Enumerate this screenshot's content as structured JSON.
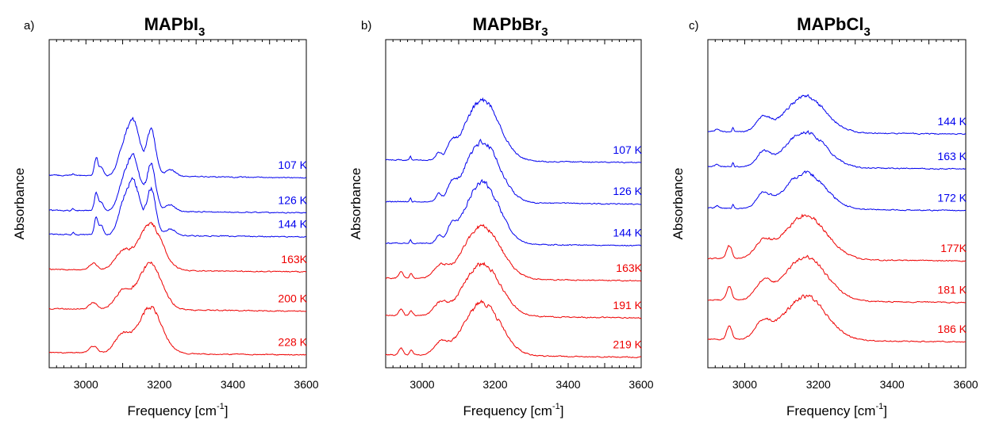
{
  "chart_data": [
    {
      "type": "line",
      "panel_label": "a)",
      "title": {
        "main": "MAPbI",
        "sub": "3"
      },
      "xlabel": {
        "main": "Frequency [cm",
        "sup": "-1",
        "end": "]"
      },
      "ylabel": "Absorbance",
      "xlim": [
        2900,
        3600
      ],
      "x_ticks": [
        3000,
        3200,
        3400,
        3600
      ],
      "y_ticks_shown": false,
      "series": [
        {
          "name": "107 K",
          "color": "#0000ee",
          "baseline": 0.62,
          "peaks": [
            {
              "x": 3130,
              "h": 0.24,
              "w": 25
            },
            {
              "x": 3178,
              "h": 0.21,
              "w": 17
            },
            {
              "x": 3100,
              "h": 0.1,
              "w": 20
            },
            {
              "x": 3028,
              "h": 0.08,
              "w": 7
            },
            {
              "x": 3042,
              "h": 0.04,
              "w": 8
            },
            {
              "x": 2965,
              "h": 0.01,
              "w": 3
            },
            {
              "x": 3230,
              "h": 0.03,
              "w": 20
            }
          ]
        },
        {
          "name": "126 K",
          "color": "#0000ee",
          "baseline": 0.78,
          "peaks": [
            {
              "x": 3130,
              "h": 0.24,
              "w": 25
            },
            {
              "x": 3178,
              "h": 0.21,
              "w": 17
            },
            {
              "x": 3100,
              "h": 0.1,
              "w": 20
            },
            {
              "x": 3028,
              "h": 0.08,
              "w": 7
            },
            {
              "x": 3042,
              "h": 0.04,
              "w": 8
            },
            {
              "x": 2965,
              "h": 0.01,
              "w": 3
            },
            {
              "x": 3230,
              "h": 0.03,
              "w": 20
            }
          ]
        },
        {
          "name": "144 K",
          "color": "#0000ee",
          "baseline": 0.89,
          "peaks": [
            {
              "x": 3130,
              "h": 0.24,
              "w": 25
            },
            {
              "x": 3178,
              "h": 0.21,
              "w": 17
            },
            {
              "x": 3100,
              "h": 0.1,
              "w": 20
            },
            {
              "x": 3028,
              "h": 0.08,
              "w": 7
            },
            {
              "x": 3042,
              "h": 0.04,
              "w": 8
            },
            {
              "x": 2965,
              "h": 0.01,
              "w": 3
            },
            {
              "x": 3230,
              "h": 0.03,
              "w": 20
            }
          ]
        },
        {
          "name": "163K",
          "color": "#ee0000",
          "baseline": 1.05,
          "peaks": [
            {
              "x": 3175,
              "h": 0.21,
              "w": 45
            },
            {
              "x": 3100,
              "h": 0.08,
              "w": 30
            },
            {
              "x": 3020,
              "h": 0.03,
              "w": 15
            }
          ]
        },
        {
          "name": "200 K",
          "color": "#ee0000",
          "baseline": 1.23,
          "peaks": [
            {
              "x": 3175,
              "h": 0.21,
              "w": 45
            },
            {
              "x": 3100,
              "h": 0.08,
              "w": 30
            },
            {
              "x": 3020,
              "h": 0.03,
              "w": 15
            }
          ]
        },
        {
          "name": "228 K",
          "color": "#ee0000",
          "baseline": 1.43,
          "peaks": [
            {
              "x": 3175,
              "h": 0.21,
              "w": 45
            },
            {
              "x": 3100,
              "h": 0.08,
              "w": 30
            },
            {
              "x": 3020,
              "h": 0.03,
              "w": 15
            }
          ]
        }
      ]
    },
    {
      "type": "line",
      "panel_label": "b)",
      "title": {
        "main": "MAPbBr",
        "sub": "3"
      },
      "xlabel": {
        "main": "Frequency [cm",
        "sup": "-1",
        "end": "]"
      },
      "ylabel": "Absorbance",
      "xlim": [
        2900,
        3600
      ],
      "x_ticks": [
        3000,
        3200,
        3400,
        3600
      ],
      "y_ticks_shown": false,
      "series": [
        {
          "name": "107 K",
          "color": "#0000ee",
          "baseline": 0.55,
          "peaks": [
            {
              "x": 3165,
              "h": 0.28,
              "w": 65
            },
            {
              "x": 3080,
              "h": 0.05,
              "w": 15
            },
            {
              "x": 3045,
              "h": 0.03,
              "w": 10
            },
            {
              "x": 2968,
              "h": 0.02,
              "w": 3
            }
          ]
        },
        {
          "name": "126 K",
          "color": "#0000ee",
          "baseline": 0.74,
          "peaks": [
            {
              "x": 3165,
              "h": 0.28,
              "w": 65
            },
            {
              "x": 3080,
              "h": 0.05,
              "w": 15
            },
            {
              "x": 3045,
              "h": 0.03,
              "w": 10
            },
            {
              "x": 2968,
              "h": 0.02,
              "w": 3
            }
          ]
        },
        {
          "name": "144 K",
          "color": "#0000ee",
          "baseline": 0.93,
          "peaks": [
            {
              "x": 3165,
              "h": 0.28,
              "w": 65
            },
            {
              "x": 3080,
              "h": 0.05,
              "w": 15
            },
            {
              "x": 3045,
              "h": 0.03,
              "w": 10
            },
            {
              "x": 2968,
              "h": 0.02,
              "w": 3
            }
          ]
        },
        {
          "name": "163K",
          "color": "#ee0000",
          "baseline": 1.09,
          "peaks": [
            {
              "x": 3165,
              "h": 0.24,
              "w": 70
            },
            {
              "x": 3050,
              "h": 0.05,
              "w": 25
            },
            {
              "x": 2942,
              "h": 0.03,
              "w": 8
            },
            {
              "x": 2970,
              "h": 0.02,
              "w": 6
            }
          ]
        },
        {
          "name": "191 K",
          "color": "#ee0000",
          "baseline": 1.26,
          "peaks": [
            {
              "x": 3165,
              "h": 0.24,
              "w": 70
            },
            {
              "x": 3050,
              "h": 0.05,
              "w": 25
            },
            {
              "x": 2942,
              "h": 0.03,
              "w": 8
            },
            {
              "x": 2970,
              "h": 0.02,
              "w": 6
            }
          ]
        },
        {
          "name": "219 K",
          "color": "#ee0000",
          "baseline": 1.44,
          "peaks": [
            {
              "x": 3165,
              "h": 0.24,
              "w": 70
            },
            {
              "x": 3050,
              "h": 0.05,
              "w": 25
            },
            {
              "x": 2942,
              "h": 0.03,
              "w": 8
            },
            {
              "x": 2970,
              "h": 0.02,
              "w": 6
            }
          ]
        }
      ]
    },
    {
      "type": "line",
      "panel_label": "c)",
      "title": {
        "main": "MAPbCl",
        "sub": "3"
      },
      "xlabel": {
        "main": "Frequency [cm",
        "sup": "-1",
        "end": "]"
      },
      "ylabel": "Absorbance",
      "xlim": [
        2900,
        3600
      ],
      "x_ticks": [
        3000,
        3200,
        3400,
        3600
      ],
      "y_ticks_shown": false,
      "series": [
        {
          "name": "144 K",
          "color": "#0000ee",
          "baseline": 0.42,
          "peaks": [
            {
              "x": 3165,
              "h": 0.165,
              "w": 75
            },
            {
              "x": 3050,
              "h": 0.06,
              "w": 25
            },
            {
              "x": 2968,
              "h": 0.02,
              "w": 3
            },
            {
              "x": 2925,
              "h": 0.01,
              "w": 8
            }
          ]
        },
        {
          "name": "163 K",
          "color": "#0000ee",
          "baseline": 0.58,
          "peaks": [
            {
              "x": 3165,
              "h": 0.165,
              "w": 75
            },
            {
              "x": 3050,
              "h": 0.06,
              "w": 25
            },
            {
              "x": 2968,
              "h": 0.02,
              "w": 3
            },
            {
              "x": 2925,
              "h": 0.01,
              "w": 8
            }
          ]
        },
        {
          "name": "172 K",
          "color": "#0000ee",
          "baseline": 0.77,
          "peaks": [
            {
              "x": 3165,
              "h": 0.165,
              "w": 75
            },
            {
              "x": 3050,
              "h": 0.06,
              "w": 25
            },
            {
              "x": 2968,
              "h": 0.02,
              "w": 3
            },
            {
              "x": 2925,
              "h": 0.01,
              "w": 8
            }
          ]
        },
        {
          "name": "177K",
          "color": "#ee0000",
          "baseline": 1.0,
          "peaks": [
            {
              "x": 3165,
              "h": 0.2,
              "w": 80
            },
            {
              "x": 3050,
              "h": 0.07,
              "w": 30
            },
            {
              "x": 2958,
              "h": 0.06,
              "w": 10
            }
          ]
        },
        {
          "name": "181 K",
          "color": "#ee0000",
          "baseline": 1.19,
          "peaks": [
            {
              "x": 3165,
              "h": 0.2,
              "w": 80
            },
            {
              "x": 3050,
              "h": 0.07,
              "w": 30
            },
            {
              "x": 2958,
              "h": 0.06,
              "w": 10
            }
          ]
        },
        {
          "name": "186 K",
          "color": "#ee0000",
          "baseline": 1.37,
          "peaks": [
            {
              "x": 3165,
              "h": 0.2,
              "w": 80
            },
            {
              "x": 3050,
              "h": 0.07,
              "w": 30
            },
            {
              "x": 2958,
              "h": 0.06,
              "w": 10
            }
          ]
        }
      ]
    }
  ]
}
